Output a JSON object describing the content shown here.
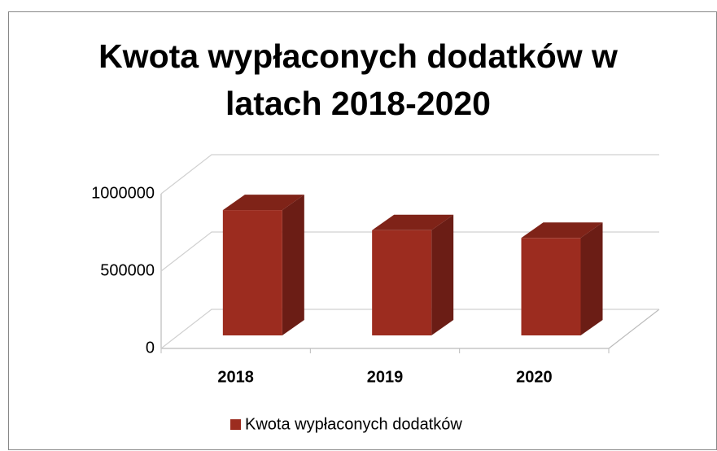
{
  "chart_data": {
    "type": "bar3d",
    "title": "Kwota wypłaconych dodatków w latach 2018-2020",
    "categories": [
      "2018",
      "2019",
      "2020"
    ],
    "series": [
      {
        "name": "Kwota wypłaconych dodatków",
        "color": "#9c2c1f",
        "values": [
          810000,
          680000,
          630000
        ]
      }
    ],
    "ylim": [
      0,
      1000000
    ],
    "yticks": [
      0,
      500000,
      1000000
    ],
    "grid": true,
    "legend": "bottom"
  }
}
